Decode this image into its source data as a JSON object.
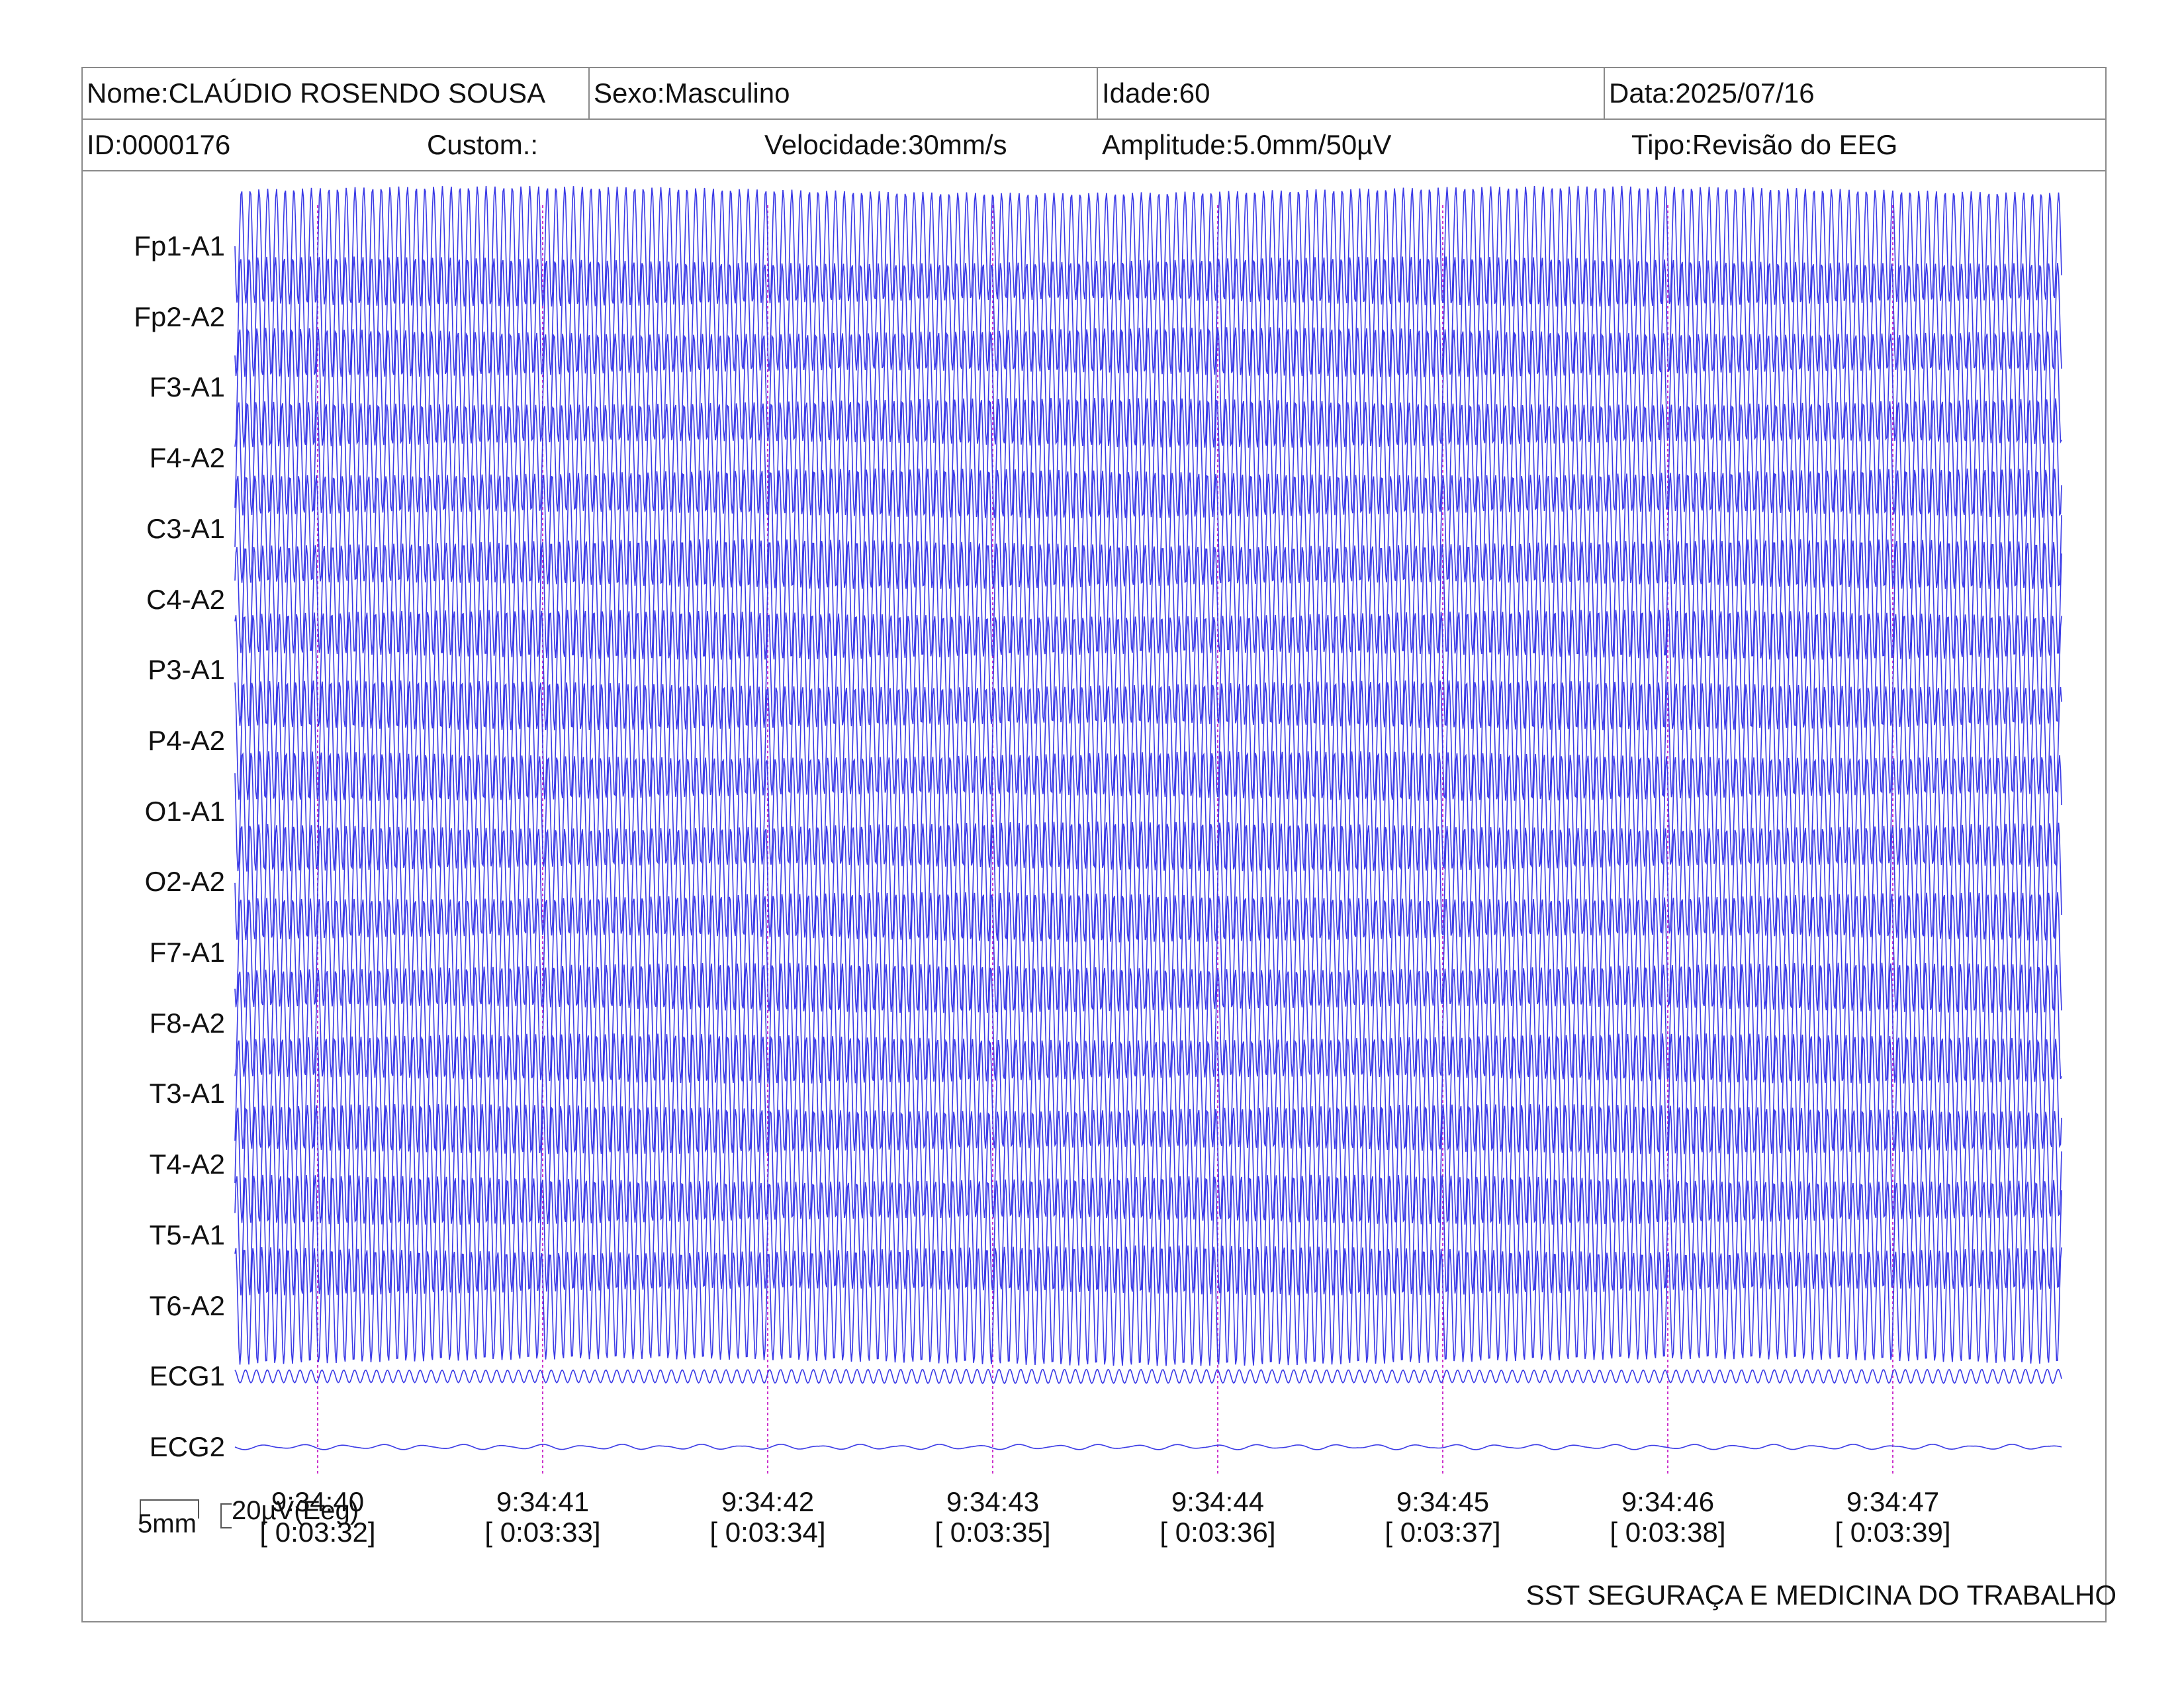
{
  "header": {
    "name": "Nome:CLAÚDIO ROSENDO SOUSA",
    "sex": "Sexo:Masculino",
    "age": "Idade:60",
    "date": "Data:2025/07/16",
    "id": "ID:0000176",
    "custom": "Custom.:",
    "speed": "Velocidade:30mm/s",
    "amplitude": "Amplitude:5.0mm/50µV",
    "type": "Tipo:Revisão do EEG"
  },
  "channels": [
    "Fp1-A1",
    "Fp2-A2",
    "F3-A1",
    "F4-A2",
    "C3-A1",
    "C4-A2",
    "P3-A1",
    "P4-A2",
    "O1-A1",
    "O2-A2",
    "F7-A1",
    "F8-A2",
    "T3-A1",
    "T4-A2",
    "T5-A1",
    "T6-A2",
    "ECG1",
    "ECG2"
  ],
  "time_marks": [
    {
      "clock": "9:34:40",
      "elapsed": "[ 0:03:32]"
    },
    {
      "clock": "9:34:41",
      "elapsed": "[ 0:03:33]"
    },
    {
      "clock": "9:34:42",
      "elapsed": "[ 0:03:34]"
    },
    {
      "clock": "9:34:43",
      "elapsed": "[ 0:03:35]"
    },
    {
      "clock": "9:34:44",
      "elapsed": "[ 0:03:36]"
    },
    {
      "clock": "9:34:45",
      "elapsed": "[ 0:03:37]"
    },
    {
      "clock": "9:34:46",
      "elapsed": "[ 0:03:38]"
    },
    {
      "clock": "9:34:47",
      "elapsed": "[ 0:03:39]"
    }
  ],
  "scale": {
    "time_label": "5mm",
    "amp_label": "20µV(Eeg)"
  },
  "footer": "SST SEGURAÇA E MEDICINA DO TRABALHO",
  "colors": {
    "trace": "#3a3ae6",
    "time_marker": "#cc33cc",
    "border": "#8a8a8a"
  }
}
